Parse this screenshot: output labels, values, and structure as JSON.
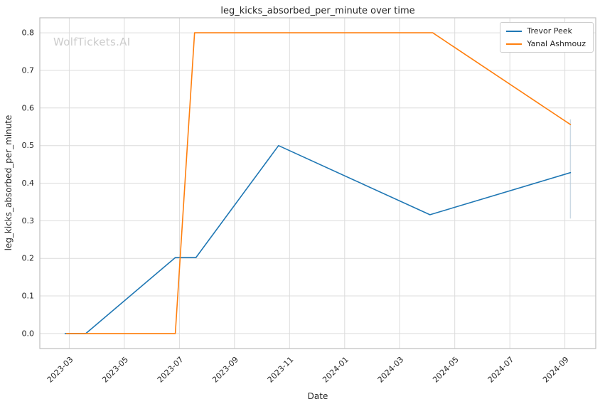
{
  "watermark": "WolfTickets.AI",
  "chart_data": {
    "type": "line",
    "title": "leg_kicks_absorbed_per_minute over time",
    "xlabel": "Date",
    "ylabel": "leg_kicks_absorbed_per_minute",
    "grid": true,
    "legend_position": "upper right",
    "x_encoding": "months since 2023-01 (2023-01 = 0)",
    "x_axis": {
      "lim": [
        0.93,
        21.12
      ],
      "ticks": [
        {
          "m": 2,
          "label": "2023-03"
        },
        {
          "m": 4,
          "label": "2023-05"
        },
        {
          "m": 6,
          "label": "2023-07"
        },
        {
          "m": 8,
          "label": "2023-09"
        },
        {
          "m": 10,
          "label": "2023-11"
        },
        {
          "m": 12,
          "label": "2024-01"
        },
        {
          "m": 14,
          "label": "2024-03"
        },
        {
          "m": 16,
          "label": "2024-05"
        },
        {
          "m": 18,
          "label": "2024-07"
        },
        {
          "m": 20,
          "label": "2024-09"
        }
      ]
    },
    "y_axis": {
      "lim": [
        -0.04,
        0.84
      ],
      "ticks": [
        {
          "v": 0.0,
          "label": "0.0"
        },
        {
          "v": 0.1,
          "label": "0.1"
        },
        {
          "v": 0.2,
          "label": "0.2"
        },
        {
          "v": 0.3,
          "label": "0.3"
        },
        {
          "v": 0.4,
          "label": "0.4"
        },
        {
          "v": 0.5,
          "label": "0.5"
        },
        {
          "v": 0.6,
          "label": "0.6"
        },
        {
          "v": 0.7,
          "label": "0.7"
        },
        {
          "v": 0.8,
          "label": "0.8"
        }
      ]
    },
    "series": [
      {
        "name": "Trevor Peek",
        "color": "#1f77b4",
        "points": [
          [
            1.85,
            0.0
          ],
          [
            2.6,
            0.0
          ],
          [
            5.85,
            0.202
          ],
          [
            6.6,
            0.202
          ],
          [
            9.6,
            0.5
          ],
          [
            15.1,
            0.316
          ],
          [
            20.2,
            0.428
          ]
        ]
      },
      {
        "name": "Yanal Ashmouz",
        "color": "#ff7f0e",
        "points": [
          [
            1.9,
            0.0
          ],
          [
            5.85,
            0.0
          ],
          [
            6.55,
            0.8
          ],
          [
            15.2,
            0.8
          ],
          [
            20.2,
            0.556
          ]
        ]
      }
    ],
    "annotations": [
      {
        "type": "vertical-segment",
        "m": 20.2,
        "v_from": 0.306,
        "v_to": 0.57,
        "color": "#b6c9da"
      }
    ]
  },
  "style": {
    "background": "#ffffff",
    "grid_color": "#dcdcdc",
    "spine_color": "#bfbfbf",
    "text_color": "#262626",
    "watermark_color": "#cccccc"
  }
}
